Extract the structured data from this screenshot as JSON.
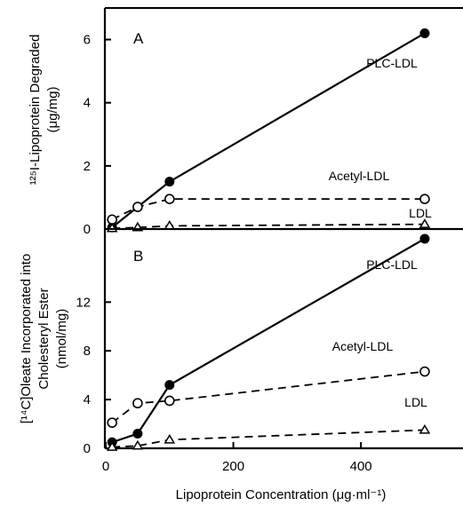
{
  "chart_data": [
    {
      "type": "line",
      "panel_label": "A",
      "ylabel": "¹²⁵I-Lipoprotein Degraded (μg/mg)",
      "ylabel_lines": [
        "¹²⁵I-Lipoprotein Degraded",
        "(μg/mg)"
      ],
      "xlim": [
        0,
        560
      ],
      "ylim": [
        0,
        7
      ],
      "yticks": [
        0,
        2,
        4,
        6
      ],
      "series": [
        {
          "name": "PLC-LDL",
          "marker": "filled-circle",
          "line": "solid",
          "points": [
            [
              10,
              0.05
            ],
            [
              50,
              0.7
            ],
            [
              100,
              1.5
            ],
            [
              500,
              6.2
            ]
          ]
        },
        {
          "name": "Acetyl-LDL",
          "marker": "open-circle",
          "line": "dashed",
          "points": [
            [
              10,
              0.3
            ],
            [
              50,
              0.7
            ],
            [
              100,
              0.95
            ],
            [
              500,
              0.95
            ]
          ]
        },
        {
          "name": "LDL",
          "marker": "open-triangle",
          "line": "dashed",
          "points": [
            [
              10,
              0.02
            ],
            [
              50,
              0.05
            ],
            [
              100,
              0.1
            ],
            [
              500,
              0.15
            ]
          ]
        }
      ]
    },
    {
      "type": "line",
      "panel_label": "B",
      "ylabel": "[¹⁴C]Oleate Incorporated into Cholesteryl Ester (nmol/mg)",
      "ylabel_lines": [
        "[¹⁴C]Oleate Incorporated into",
        "Cholesteryl Ester",
        "(nmol/mg)"
      ],
      "xlabel": "Lipoprotein Concentration (μg·ml⁻¹)",
      "xlim": [
        0,
        560
      ],
      "ylim": [
        0,
        18
      ],
      "yticks": [
        0,
        4,
        8,
        12
      ],
      "xticks": [
        0,
        200,
        400
      ],
      "series": [
        {
          "name": "PLC-LDL",
          "marker": "filled-circle",
          "line": "solid",
          "points": [
            [
              10,
              0.5
            ],
            [
              50,
              1.2
            ],
            [
              100,
              5.2
            ],
            [
              500,
              17.2
            ]
          ]
        },
        {
          "name": "Acetyl-LDL",
          "marker": "open-circle",
          "line": "dashed",
          "points": [
            [
              10,
              2.1
            ],
            [
              50,
              3.7
            ],
            [
              100,
              3.9
            ],
            [
              500,
              6.3
            ]
          ]
        },
        {
          "name": "LDL",
          "marker": "open-triangle",
          "line": "dashed",
          "points": [
            [
              10,
              0.1
            ],
            [
              50,
              0.2
            ],
            [
              100,
              0.7
            ],
            [
              500,
              1.5
            ]
          ]
        }
      ]
    }
  ]
}
